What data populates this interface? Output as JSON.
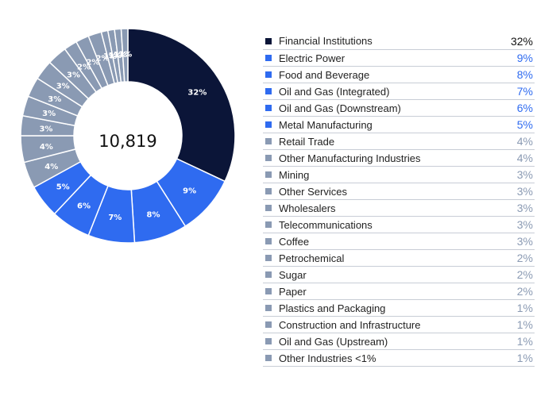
{
  "chart_data": {
    "type": "pie",
    "variant": "donut",
    "center_label": "10,819",
    "categories": [
      "Financial Institutions",
      "Electric Power",
      "Food and Beverage",
      "Oil and Gas (Integrated)",
      "Oil and Gas (Downstream)",
      "Metal Manufacturing",
      "Retail Trade",
      "Other Manufacturing Industries",
      "Mining",
      "Other Services",
      "Wholesalers",
      "Telecommunications",
      "Coffee",
      "Petrochemical",
      "Sugar",
      "Paper",
      "Plastics and Packaging",
      "Construction and Infrastructure",
      "Oil and Gas (Upstream)",
      "Other Industries <1%"
    ],
    "values": [
      32,
      9,
      8,
      7,
      6,
      5,
      4,
      4,
      3,
      3,
      3,
      3,
      3,
      2,
      2,
      2,
      1,
      1,
      1,
      1
    ],
    "value_labels": [
      "32%",
      "9%",
      "8%",
      "7%",
      "6%",
      "5%",
      "4%",
      "4%",
      "3%",
      "3%",
      "3%",
      "3%",
      "3%",
      "2%",
      "2%",
      "2%",
      "1%",
      "1%",
      "1%",
      "1%"
    ],
    "colors": [
      "#0b1538",
      "#2f6bf0",
      "#2f6bf0",
      "#2f6bf0",
      "#2f6bf0",
      "#2f6bf0",
      "#8a9ab3",
      "#8a9ab3",
      "#8a9ab3",
      "#8a9ab3",
      "#8a9ab3",
      "#8a9ab3",
      "#8a9ab3",
      "#8a9ab3",
      "#8a9ab3",
      "#8a9ab3",
      "#8a9ab3",
      "#8a9ab3",
      "#8a9ab3",
      "#8a9ab3"
    ],
    "legend_position": "right",
    "title": ""
  }
}
